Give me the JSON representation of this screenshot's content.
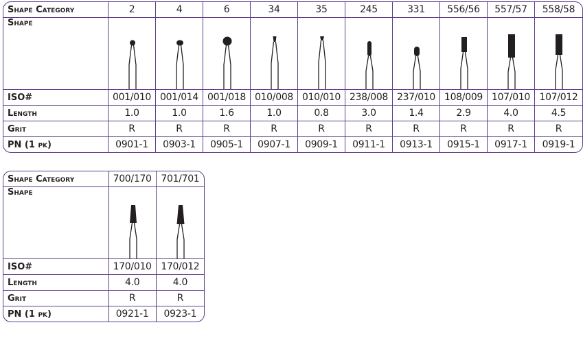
{
  "labels": {
    "category": "Shape Category",
    "shape": "Shape",
    "iso": "ISO#",
    "length": "Length",
    "grit": "Grit",
    "pn": "PN (1 pk)"
  },
  "colors": {
    "border": "#5b3a8c",
    "bur": "#231f20"
  },
  "tables": [
    {
      "columns": [
        {
          "category": "2",
          "iso": "001/010",
          "length": "1.0",
          "grit": "R",
          "pn": "0901-1",
          "shape_icon": "round-bur-icon"
        },
        {
          "category": "4",
          "iso": "001/014",
          "length": "1.0",
          "grit": "R",
          "pn": "0903-1",
          "shape_icon": "round-bur-icon"
        },
        {
          "category": "6",
          "iso": "001/018",
          "length": "1.6",
          "grit": "R",
          "pn": "0905-1",
          "shape_icon": "round-bur-icon"
        },
        {
          "category": "34",
          "iso": "010/008",
          "length": "1.0",
          "grit": "R",
          "pn": "0907-1",
          "shape_icon": "inverted-cone-bur-icon"
        },
        {
          "category": "35",
          "iso": "010/010",
          "length": "0.8",
          "grit": "R",
          "pn": "0909-1",
          "shape_icon": "inverted-cone-bur-icon"
        },
        {
          "category": "245",
          "iso": "238/008",
          "length": "3.0",
          "grit": "R",
          "pn": "0911-1",
          "shape_icon": "pear-bur-icon"
        },
        {
          "category": "331",
          "iso": "237/010",
          "length": "1.4",
          "grit": "R",
          "pn": "0913-1",
          "shape_icon": "pear-bur-icon"
        },
        {
          "category": "556/56",
          "iso": "108/009",
          "length": "2.9",
          "grit": "R",
          "pn": "0915-1",
          "shape_icon": "cylinder-bur-icon"
        },
        {
          "category": "557/57",
          "iso": "107/010",
          "length": "4.0",
          "grit": "R",
          "pn": "0917-1",
          "shape_icon": "cylinder-bur-icon"
        },
        {
          "category": "558/58",
          "iso": "107/012",
          "length": "4.5",
          "grit": "R",
          "pn": "0919-1",
          "shape_icon": "cylinder-bur-icon"
        }
      ]
    },
    {
      "columns": [
        {
          "category": "700/170",
          "iso": "170/010",
          "length": "4.0",
          "grit": "R",
          "pn": "0921-1",
          "shape_icon": "tapered-fissure-bur-icon"
        },
        {
          "category": "701/701",
          "iso": "170/012",
          "length": "4.0",
          "grit": "R",
          "pn": "0923-1",
          "shape_icon": "tapered-fissure-bur-icon"
        }
      ]
    }
  ]
}
